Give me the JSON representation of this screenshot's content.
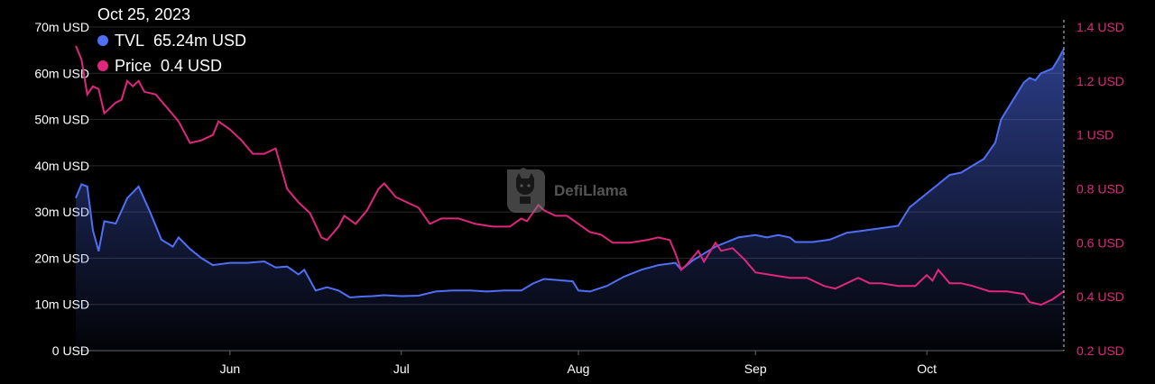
{
  "tooltip": {
    "date": "Oct 25, 2023",
    "tvl_label": "TVL",
    "tvl_value": "65.24m USD",
    "price_label": "Price",
    "price_value": "0.4 USD"
  },
  "watermark": "DefiLlama",
  "colors": {
    "tvl": "#4f6ff5",
    "price": "#e0267d",
    "grid": "#2a2a2a",
    "background": "#000000"
  },
  "chart_data": {
    "type": "line",
    "title": "",
    "x_start": "2023-05-05",
    "x_end": "2023-10-25",
    "x_ticks": [
      {
        "label": "Jun",
        "date": "2023-06-01"
      },
      {
        "label": "Jul",
        "date": "2023-07-01"
      },
      {
        "label": "Aug",
        "date": "2023-08-01"
      },
      {
        "label": "Sep",
        "date": "2023-09-01"
      },
      {
        "label": "Oct",
        "date": "2023-10-01"
      }
    ],
    "y_left": {
      "min": 0,
      "max": 70,
      "ticks": [
        0,
        10,
        20,
        30,
        40,
        50,
        60,
        70
      ],
      "tick_labels": [
        "0 USD",
        "10m USD",
        "20m USD",
        "30m USD",
        "40m USD",
        "50m USD",
        "60m USD",
        "70m USD"
      ]
    },
    "y_right": {
      "min": 0.2,
      "max": 1.4,
      "ticks": [
        0.2,
        0.4,
        0.6,
        0.8,
        1.0,
        1.2,
        1.4
      ],
      "tick_labels": [
        "0.2 USD",
        "0.4 USD",
        "0.6 USD",
        "0.8 USD",
        "1 USD",
        "1.2 USD",
        "1.4 USD"
      ]
    },
    "grid": true,
    "series": [
      {
        "name": "TVL",
        "axis": "left",
        "style": "area",
        "points": [
          [
            "2023-05-05",
            33
          ],
          [
            "2023-05-06",
            36
          ],
          [
            "2023-05-07",
            35.5
          ],
          [
            "2023-05-08",
            26
          ],
          [
            "2023-05-09",
            21.5
          ],
          [
            "2023-05-10",
            28
          ],
          [
            "2023-05-12",
            27.5
          ],
          [
            "2023-05-14",
            33
          ],
          [
            "2023-05-16",
            35.5
          ],
          [
            "2023-05-18",
            30
          ],
          [
            "2023-05-20",
            24
          ],
          [
            "2023-05-22",
            22.5
          ],
          [
            "2023-05-23",
            24.5
          ],
          [
            "2023-05-25",
            22
          ],
          [
            "2023-05-27",
            20
          ],
          [
            "2023-05-29",
            18.5
          ],
          [
            "2023-06-01",
            19
          ],
          [
            "2023-06-04",
            19
          ],
          [
            "2023-06-07",
            19.3
          ],
          [
            "2023-06-09",
            18
          ],
          [
            "2023-06-11",
            18.2
          ],
          [
            "2023-06-13",
            16.5
          ],
          [
            "2023-06-14",
            17.5
          ],
          [
            "2023-06-16",
            13
          ],
          [
            "2023-06-18",
            13.7
          ],
          [
            "2023-06-20",
            13
          ],
          [
            "2023-06-22",
            11.5
          ],
          [
            "2023-06-24",
            11.7
          ],
          [
            "2023-06-26",
            11.8
          ],
          [
            "2023-06-28",
            12
          ],
          [
            "2023-07-01",
            11.8
          ],
          [
            "2023-07-04",
            11.9
          ],
          [
            "2023-07-07",
            12.8
          ],
          [
            "2023-07-10",
            13
          ],
          [
            "2023-07-13",
            13
          ],
          [
            "2023-07-16",
            12.8
          ],
          [
            "2023-07-19",
            13
          ],
          [
            "2023-07-22",
            13
          ],
          [
            "2023-07-24",
            14.5
          ],
          [
            "2023-07-26",
            15.5
          ],
          [
            "2023-07-28",
            15.3
          ],
          [
            "2023-07-31",
            15
          ],
          [
            "2023-08-01",
            13
          ],
          [
            "2023-08-03",
            12.8
          ],
          [
            "2023-08-06",
            14
          ],
          [
            "2023-08-09",
            16
          ],
          [
            "2023-08-12",
            17.5
          ],
          [
            "2023-08-15",
            18.5
          ],
          [
            "2023-08-18",
            19
          ],
          [
            "2023-08-19",
            17.5
          ],
          [
            "2023-08-21",
            19.5
          ],
          [
            "2023-08-23",
            21
          ],
          [
            "2023-08-25",
            22.5
          ],
          [
            "2023-08-27",
            23.5
          ],
          [
            "2023-08-29",
            24.5
          ],
          [
            "2023-09-01",
            25
          ],
          [
            "2023-09-03",
            24.5
          ],
          [
            "2023-09-05",
            25
          ],
          [
            "2023-09-07",
            24.5
          ],
          [
            "2023-09-08",
            23.5
          ],
          [
            "2023-09-11",
            23.5
          ],
          [
            "2023-09-14",
            24
          ],
          [
            "2023-09-17",
            25.5
          ],
          [
            "2023-09-20",
            26
          ],
          [
            "2023-09-23",
            26.5
          ],
          [
            "2023-09-26",
            27
          ],
          [
            "2023-09-28",
            31
          ],
          [
            "2023-10-01",
            34
          ],
          [
            "2023-10-03",
            36
          ],
          [
            "2023-10-05",
            38
          ],
          [
            "2023-10-07",
            38.5
          ],
          [
            "2023-10-09",
            40
          ],
          [
            "2023-10-11",
            41.5
          ],
          [
            "2023-10-13",
            45
          ],
          [
            "2023-10-14",
            50
          ],
          [
            "2023-10-16",
            54
          ],
          [
            "2023-10-17",
            56
          ],
          [
            "2023-10-18",
            58
          ],
          [
            "2023-10-19",
            59
          ],
          [
            "2023-10-20",
            58.5
          ],
          [
            "2023-10-21",
            60
          ],
          [
            "2023-10-22",
            60.5
          ],
          [
            "2023-10-23",
            61
          ],
          [
            "2023-10-24",
            63
          ],
          [
            "2023-10-25",
            65.24
          ]
        ]
      },
      {
        "name": "Price",
        "axis": "right",
        "style": "line",
        "points": [
          [
            "2023-05-05",
            1.33
          ],
          [
            "2023-05-06",
            1.28
          ],
          [
            "2023-05-07",
            1.15
          ],
          [
            "2023-05-08",
            1.18
          ],
          [
            "2023-05-09",
            1.17
          ],
          [
            "2023-05-10",
            1.08
          ],
          [
            "2023-05-11",
            1.1
          ],
          [
            "2023-05-12",
            1.12
          ],
          [
            "2023-05-13",
            1.13
          ],
          [
            "2023-05-14",
            1.2
          ],
          [
            "2023-05-15",
            1.18
          ],
          [
            "2023-05-16",
            1.2
          ],
          [
            "2023-05-17",
            1.16
          ],
          [
            "2023-05-19",
            1.15
          ],
          [
            "2023-05-21",
            1.1
          ],
          [
            "2023-05-23",
            1.05
          ],
          [
            "2023-05-25",
            0.97
          ],
          [
            "2023-05-27",
            0.98
          ],
          [
            "2023-05-29",
            1.0
          ],
          [
            "2023-05-30",
            1.05
          ],
          [
            "2023-06-01",
            1.02
          ],
          [
            "2023-06-03",
            0.98
          ],
          [
            "2023-06-05",
            0.93
          ],
          [
            "2023-06-07",
            0.93
          ],
          [
            "2023-06-09",
            0.95
          ],
          [
            "2023-06-11",
            0.8
          ],
          [
            "2023-06-13",
            0.75
          ],
          [
            "2023-06-15",
            0.71
          ],
          [
            "2023-06-17",
            0.62
          ],
          [
            "2023-06-18",
            0.61
          ],
          [
            "2023-06-20",
            0.66
          ],
          [
            "2023-06-21",
            0.7
          ],
          [
            "2023-06-23",
            0.67
          ],
          [
            "2023-06-25",
            0.72
          ],
          [
            "2023-06-27",
            0.8
          ],
          [
            "2023-06-28",
            0.82
          ],
          [
            "2023-06-30",
            0.77
          ],
          [
            "2023-07-02",
            0.75
          ],
          [
            "2023-07-04",
            0.73
          ],
          [
            "2023-07-06",
            0.67
          ],
          [
            "2023-07-08",
            0.69
          ],
          [
            "2023-07-11",
            0.69
          ],
          [
            "2023-07-14",
            0.67
          ],
          [
            "2023-07-17",
            0.66
          ],
          [
            "2023-07-20",
            0.66
          ],
          [
            "2023-07-22",
            0.69
          ],
          [
            "2023-07-23",
            0.68
          ],
          [
            "2023-07-25",
            0.74
          ],
          [
            "2023-07-26",
            0.72
          ],
          [
            "2023-07-28",
            0.7
          ],
          [
            "2023-07-30",
            0.7
          ],
          [
            "2023-08-01",
            0.67
          ],
          [
            "2023-08-03",
            0.64
          ],
          [
            "2023-08-05",
            0.63
          ],
          [
            "2023-08-07",
            0.6
          ],
          [
            "2023-08-10",
            0.6
          ],
          [
            "2023-08-13",
            0.61
          ],
          [
            "2023-08-15",
            0.62
          ],
          [
            "2023-08-17",
            0.61
          ],
          [
            "2023-08-18",
            0.56
          ],
          [
            "2023-08-19",
            0.5
          ],
          [
            "2023-08-20",
            0.52
          ],
          [
            "2023-08-22",
            0.57
          ],
          [
            "2023-08-23",
            0.53
          ],
          [
            "2023-08-25",
            0.6
          ],
          [
            "2023-08-26",
            0.57
          ],
          [
            "2023-08-28",
            0.58
          ],
          [
            "2023-08-30",
            0.54
          ],
          [
            "2023-09-01",
            0.49
          ],
          [
            "2023-09-04",
            0.48
          ],
          [
            "2023-09-07",
            0.47
          ],
          [
            "2023-09-10",
            0.47
          ],
          [
            "2023-09-13",
            0.44
          ],
          [
            "2023-09-15",
            0.43
          ],
          [
            "2023-09-17",
            0.45
          ],
          [
            "2023-09-19",
            0.47
          ],
          [
            "2023-09-21",
            0.45
          ],
          [
            "2023-09-23",
            0.45
          ],
          [
            "2023-09-26",
            0.44
          ],
          [
            "2023-09-29",
            0.44
          ],
          [
            "2023-10-01",
            0.48
          ],
          [
            "2023-10-02",
            0.46
          ],
          [
            "2023-10-03",
            0.5
          ],
          [
            "2023-10-05",
            0.45
          ],
          [
            "2023-10-07",
            0.45
          ],
          [
            "2023-10-09",
            0.44
          ],
          [
            "2023-10-12",
            0.42
          ],
          [
            "2023-10-15",
            0.42
          ],
          [
            "2023-10-18",
            0.41
          ],
          [
            "2023-10-19",
            0.38
          ],
          [
            "2023-10-21",
            0.37
          ],
          [
            "2023-10-23",
            0.39
          ],
          [
            "2023-10-25",
            0.42
          ]
        ]
      }
    ]
  }
}
